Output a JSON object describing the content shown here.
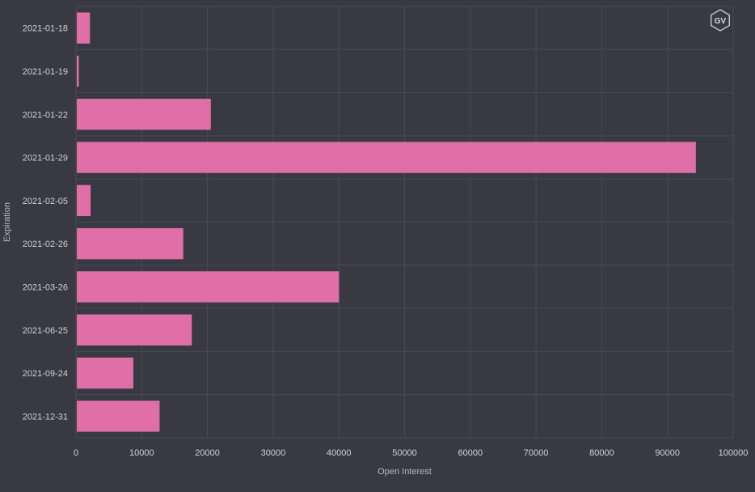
{
  "chart_data": {
    "type": "bar",
    "orientation": "horizontal",
    "categories": [
      "2021-01-18",
      "2021-01-19",
      "2021-01-22",
      "2021-01-29",
      "2021-02-05",
      "2021-02-26",
      "2021-03-26",
      "2021-06-25",
      "2021-09-24",
      "2021-12-31"
    ],
    "values": [
      2000,
      300,
      20400,
      94200,
      2100,
      16200,
      39900,
      17500,
      8600,
      12600
    ],
    "xlabel": "Open Interest",
    "ylabel": "Expiration",
    "xlim": [
      0,
      100000
    ],
    "xticks": [
      0,
      10000,
      20000,
      30000,
      40000,
      50000,
      60000,
      70000,
      80000,
      90000,
      100000
    ],
    "grid": true,
    "legend": "none",
    "colors": {
      "background": "#393944",
      "bar": "#e06fa8",
      "grid": "#4a4a55",
      "text": "#d0d0d6"
    }
  },
  "logo": {
    "text": "GV",
    "icon": "hexagon-logo-icon"
  }
}
